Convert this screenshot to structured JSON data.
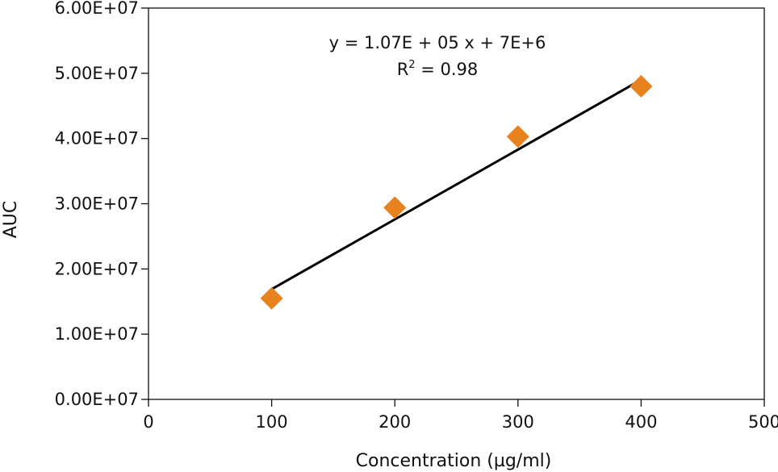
{
  "chart_data": {
    "type": "scatter",
    "title": "",
    "xlabel": "Concentration (µg/ml)",
    "ylabel": "AUC",
    "xlim": [
      0,
      500
    ],
    "ylim": [
      0,
      60000000
    ],
    "x_ticks": [
      0,
      100,
      200,
      300,
      400,
      500
    ],
    "x_tick_labels": [
      "0",
      "100",
      "200",
      "300",
      "400",
      "500"
    ],
    "y_ticks": [
      0,
      10000000,
      20000000,
      30000000,
      40000000,
      50000000,
      60000000
    ],
    "y_tick_labels": [
      "0.00E+07",
      "1.00E+07",
      "2.00E+07",
      "3.00E+07",
      "4.00E+07",
      "5.00E+07",
      "6.00E+07"
    ],
    "grid": false,
    "series": [
      {
        "name": "AUC",
        "marker": "diamond",
        "color": "#E8821E",
        "x": [
          100,
          200,
          300,
          400
        ],
        "y": [
          15500000,
          29400000,
          40300000,
          48000000
        ]
      }
    ],
    "trendline": {
      "type": "linear",
      "color": "#000000",
      "x": [
        100,
        400
      ],
      "y": [
        16900000,
        49000000
      ]
    },
    "annotations": {
      "equation": "y = 1.07E + 05 x + 7E+6",
      "r2_prefix": "R",
      "r2_sup": "2",
      "r2_suffix": " = 0.98"
    }
  }
}
